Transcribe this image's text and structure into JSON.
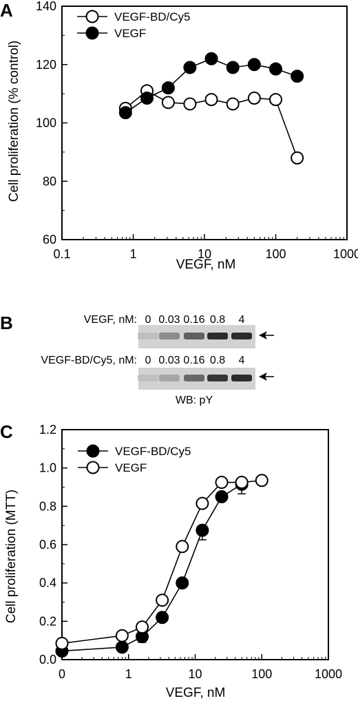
{
  "panel_a": {
    "letter": "A",
    "chart_data": {
      "type": "scatter",
      "xscale": "log",
      "xlim": [
        0.1,
        1000
      ],
      "ylim": [
        60,
        140
      ],
      "xticks": [
        "0.1",
        "1",
        "10",
        "100",
        "1000"
      ],
      "yticks": [
        "60",
        "80",
        "100",
        "120",
        "140"
      ],
      "xlabel": "VEGF, nM",
      "ylabel": "Cell proliferation (% control)",
      "legend_position": "top-left",
      "series": [
        {
          "name": "VEGF-BD/Cy5",
          "marker": "open-circle",
          "x": [
            0.78,
            1.56,
            3.1,
            6.25,
            12.5,
            25,
            50,
            100,
            200
          ],
          "y": [
            105,
            111,
            107,
            106.5,
            108,
            106.5,
            108.5,
            108,
            88
          ]
        },
        {
          "name": "VEGF",
          "marker": "filled-circle",
          "x": [
            0.78,
            1.56,
            3.1,
            6.25,
            12.5,
            25,
            50,
            100,
            200
          ],
          "y": [
            103.5,
            108.5,
            112,
            119,
            122,
            119,
            120,
            118.5,
            116
          ]
        }
      ]
    }
  },
  "panel_b": {
    "letter": "B",
    "row1_label": "VEGF, nM:",
    "row2_label": "VEGF-BD/Cy5, nM:",
    "concentrations": [
      "0",
      "0.03",
      "0.16",
      "0.8",
      "4"
    ],
    "row1_band_intensity": [
      0.05,
      0.35,
      0.6,
      0.9,
      0.9
    ],
    "row2_band_intensity": [
      0.05,
      0.2,
      0.55,
      0.85,
      0.9
    ],
    "footer": "WB: pY"
  },
  "panel_c": {
    "letter": "C",
    "chart_data": {
      "type": "scatter",
      "xscale": "log",
      "xlim": [
        0.1,
        1000
      ],
      "ylim": [
        0,
        1.2
      ],
      "xticks": [
        "0",
        "1",
        "10",
        "100",
        "1000"
      ],
      "yticks": [
        "0.0",
        "0.2",
        "0.4",
        "0.6",
        "0.8",
        "1.0",
        "1.2"
      ],
      "xlabel": "VEGF, nM",
      "ylabel": "Cell proliferation (MTT)",
      "legend_position": "top-left",
      "series": [
        {
          "name": "VEGF-BD/Cy5",
          "marker": "filled-circle",
          "x": [
            0.1,
            0.8,
            1.6,
            3.2,
            6.4,
            12.8,
            25,
            50
          ],
          "y": [
            0.045,
            0.065,
            0.12,
            0.22,
            0.4,
            0.675,
            0.85,
            0.915
          ],
          "err": [
            0,
            0,
            0.03,
            0.02,
            0.02,
            0.05,
            0.02,
            0.05
          ]
        },
        {
          "name": "VEGF",
          "marker": "open-circle",
          "x": [
            0.1,
            0.8,
            1.6,
            3.2,
            6.4,
            12.8,
            25,
            50,
            100
          ],
          "y": [
            0.085,
            0.125,
            0.17,
            0.31,
            0.59,
            0.815,
            0.925,
            0.925,
            0.935
          ],
          "err": [
            0,
            0,
            0,
            0,
            0,
            0,
            0,
            0.02,
            0
          ]
        }
      ]
    }
  }
}
